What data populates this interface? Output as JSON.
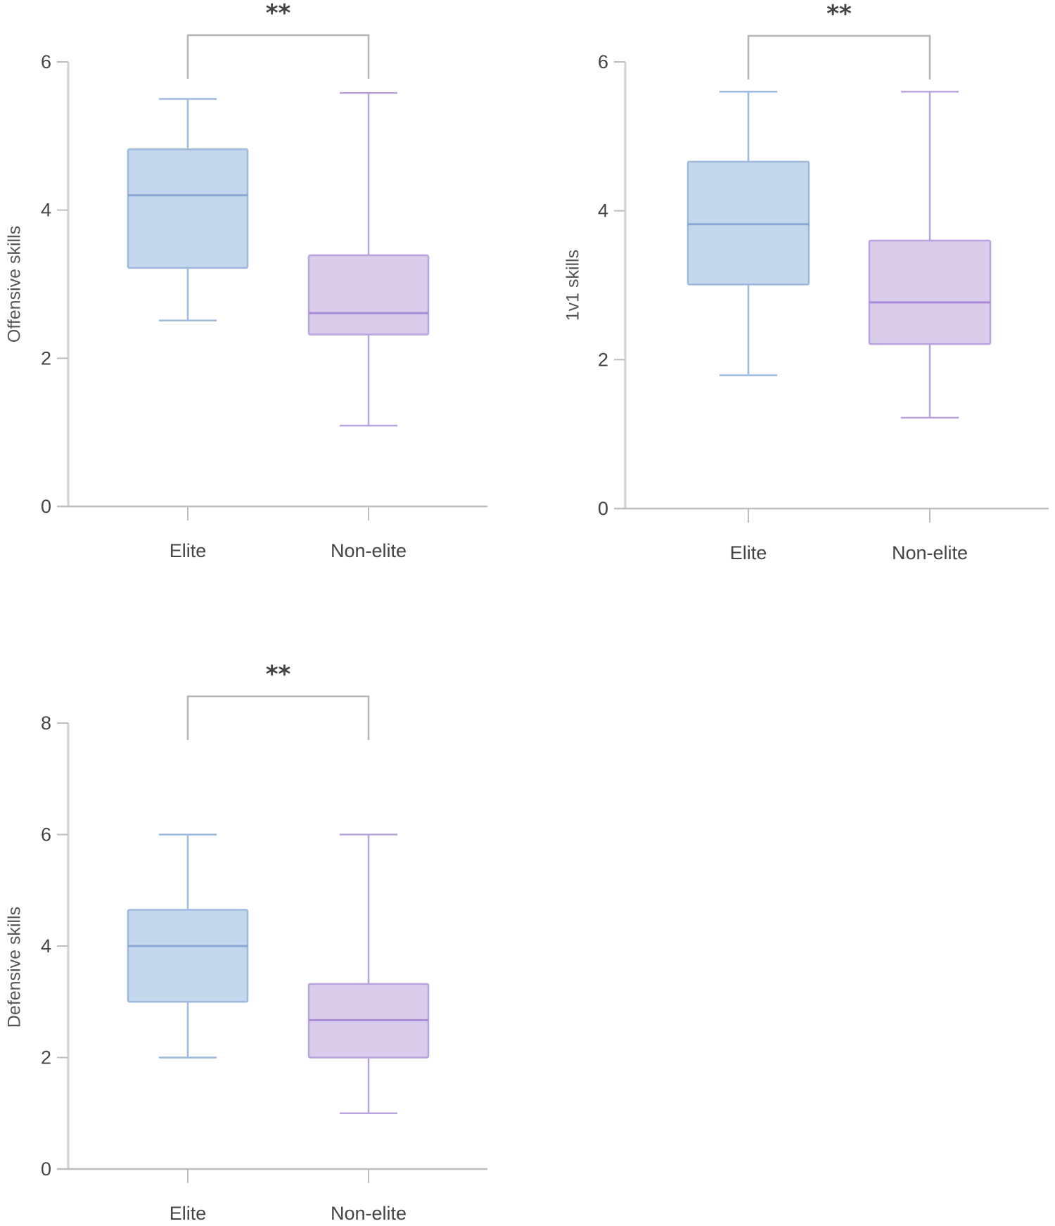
{
  "chart_data": [
    {
      "type": "box",
      "ylabel": "Offensive skills",
      "xlabel": "",
      "ylim": [
        0,
        6
      ],
      "yticks": [
        "0",
        "2",
        "4",
        "6"
      ],
      "categories": [
        "Elite",
        "Non-elite"
      ],
      "series": [
        {
          "name": "Elite",
          "whisker_low": 2.51,
          "q1": 3.22,
          "median": 4.2,
          "q3": 4.82,
          "whisker_high": 5.5,
          "color": "#c5d7ec",
          "stroke": "#9db9de"
        },
        {
          "name": "Non-elite",
          "whisker_low": 1.09,
          "q1": 2.32,
          "median": 2.61,
          "q3": 3.39,
          "whisker_high": 5.58,
          "color": "#d9cdeb",
          "stroke": "#b9a3de"
        }
      ],
      "significance": {
        "between": [
          "Elite",
          "Non-elite"
        ],
        "label": "**"
      }
    },
    {
      "type": "box",
      "ylabel": "1v1 skills",
      "xlabel": "",
      "ylim": [
        0,
        6
      ],
      "yticks": [
        "0",
        "2",
        "4",
        "6"
      ],
      "categories": [
        "Elite",
        "Non-elite"
      ],
      "series": [
        {
          "name": "Elite",
          "whisker_low": 1.79,
          "q1": 3.01,
          "median": 3.82,
          "q3": 4.66,
          "whisker_high": 5.6,
          "color": "#c5d7ec",
          "stroke": "#9db9de"
        },
        {
          "name": "Non-elite",
          "whisker_low": 1.22,
          "q1": 2.21,
          "median": 2.77,
          "q3": 3.6,
          "whisker_high": 5.6,
          "color": "#d9cdeb",
          "stroke": "#b9a3de"
        }
      ],
      "significance": {
        "between": [
          "Elite",
          "Non-elite"
        ],
        "label": "**"
      }
    },
    {
      "type": "box",
      "ylabel": "Defensive skills",
      "xlabel": "",
      "ylim": [
        0,
        8
      ],
      "yticks": [
        "0",
        "2",
        "4",
        "6",
        "8"
      ],
      "categories": [
        "Elite",
        "Non-elite"
      ],
      "series": [
        {
          "name": "Elite",
          "whisker_low": 2.0,
          "q1": 3.0,
          "median": 4.0,
          "q3": 4.65,
          "whisker_high": 6.0,
          "color": "#c5d7ec",
          "stroke": "#9db9de"
        },
        {
          "name": "Non-elite",
          "whisker_low": 1.0,
          "q1": 2.0,
          "median": 2.67,
          "q3": 3.32,
          "whisker_high": 6.0,
          "color": "#d9cdeb",
          "stroke": "#b9a3de"
        }
      ],
      "significance": {
        "between": [
          "Elite",
          "Non-elite"
        ],
        "label": "**"
      }
    }
  ]
}
